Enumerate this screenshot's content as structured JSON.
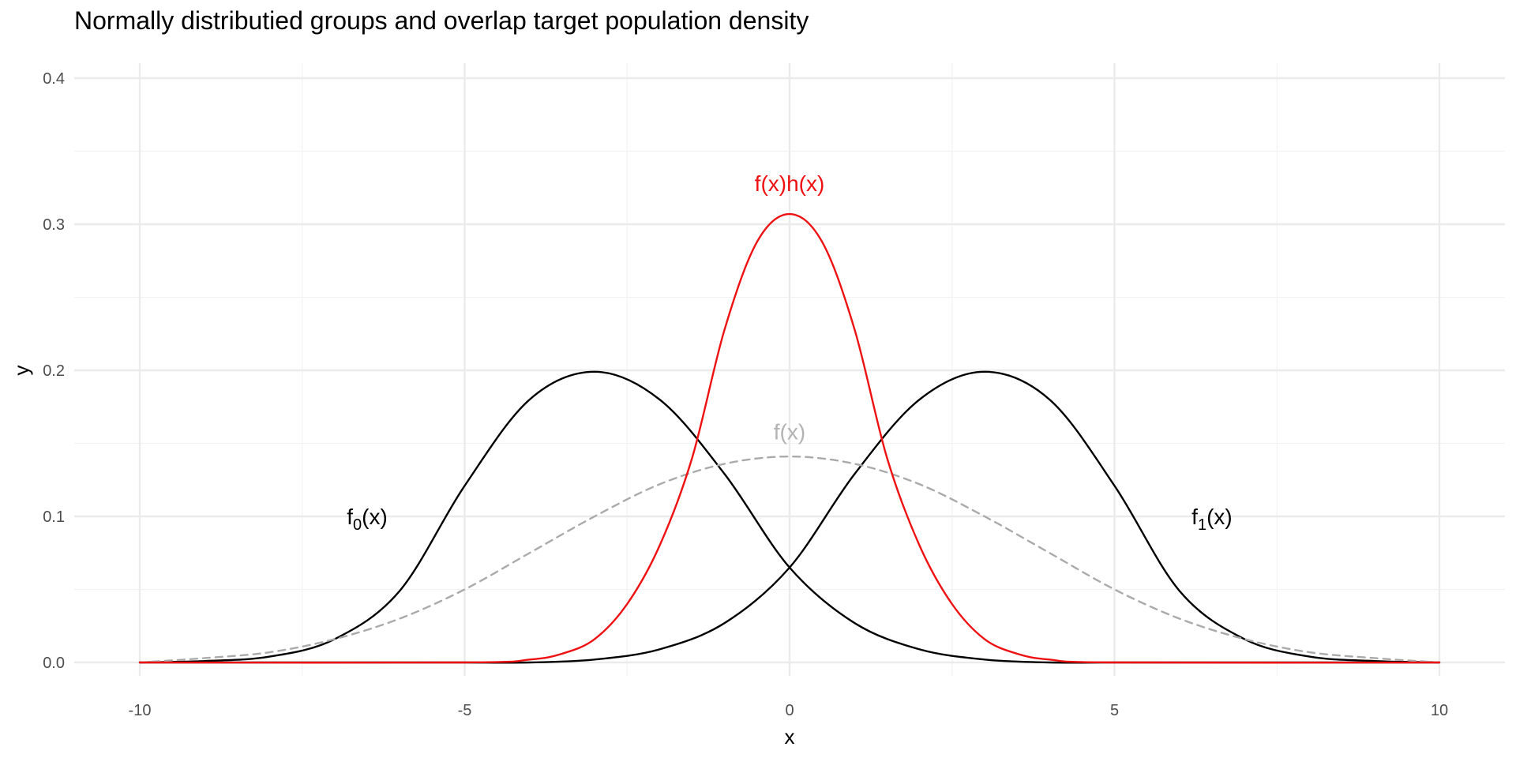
{
  "chart_data": {
    "type": "line",
    "title": "Normally distributied groups and overlap target population density",
    "xlabel": "x",
    "ylabel": "y",
    "xlim": [
      -10,
      10
    ],
    "ylim": [
      0,
      0.4
    ],
    "x_ticks": [
      -10,
      -5,
      0,
      5,
      10
    ],
    "x_tick_labels": [
      "-10",
      "-5",
      "0",
      "5",
      "10"
    ],
    "y_ticks": [
      0,
      0.1,
      0.2,
      0.3,
      0.4
    ],
    "y_tick_labels": [
      "0.0",
      "0.1",
      "0.2",
      "0.3",
      "0.4"
    ],
    "grid": true,
    "legend": "none",
    "series": [
      {
        "key": "f0",
        "style": "solid",
        "color": "#000000",
        "x": [
          -10,
          -9,
          -8,
          -7,
          -6,
          -5,
          -4,
          -3,
          -2,
          -1,
          0,
          1,
          2,
          3,
          4,
          5,
          6,
          7,
          8,
          9,
          10
        ],
        "values": [
          0.0,
          0.001,
          0.004,
          0.016,
          0.049,
          0.121,
          0.18,
          0.199,
          0.18,
          0.129,
          0.065,
          0.027,
          0.009,
          0.002,
          0.0,
          0.0,
          0.0,
          0.0,
          0.0,
          0.0,
          0.0
        ]
      },
      {
        "key": "f1",
        "style": "solid",
        "color": "#000000",
        "x": [
          -10,
          -9,
          -8,
          -7,
          -6,
          -5,
          -4,
          -3,
          -2,
          -1,
          0,
          1,
          2,
          3,
          4,
          5,
          6,
          7,
          8,
          9,
          10
        ],
        "values": [
          0.0,
          0.0,
          0.0,
          0.0,
          0.0,
          0.0,
          0.0,
          0.002,
          0.009,
          0.027,
          0.065,
          0.129,
          0.18,
          0.199,
          0.18,
          0.121,
          0.049,
          0.016,
          0.004,
          0.001,
          0.0
        ]
      },
      {
        "key": "f",
        "style": "dashed",
        "color": "#aaaaaa",
        "x": [
          -10,
          -9,
          -8,
          -7,
          -6,
          -5,
          -4,
          -3,
          -2,
          -1,
          0,
          1,
          2,
          3,
          4,
          5,
          6,
          7,
          8,
          9,
          10
        ],
        "values": [
          0.0,
          0.003,
          0.007,
          0.016,
          0.03,
          0.05,
          0.075,
          0.1,
          0.122,
          0.136,
          0.141,
          0.136,
          0.122,
          0.1,
          0.075,
          0.05,
          0.03,
          0.016,
          0.007,
          0.003,
          0.0
        ]
      },
      {
        "key": "fh",
        "style": "solid",
        "color": "#ee1111",
        "x": [
          -10,
          -5,
          -4,
          -3.5,
          -3,
          -2.5,
          -2,
          -1.5,
          -1,
          -0.5,
          0,
          0.5,
          1,
          1.5,
          2,
          2.5,
          3,
          3.5,
          4,
          5,
          10
        ],
        "values": [
          0.0,
          0.0,
          0.002,
          0.006,
          0.016,
          0.04,
          0.08,
          0.14,
          0.228,
          0.288,
          0.307,
          0.288,
          0.228,
          0.14,
          0.08,
          0.04,
          0.016,
          0.006,
          0.002,
          0.0,
          0.0
        ]
      }
    ],
    "annotations": [
      {
        "key": "f0",
        "base": "f",
        "sub": "0",
        "tail": "(x)",
        "x": -6.5,
        "y": 0.1,
        "color": "#000000"
      },
      {
        "key": "f1",
        "base": "f",
        "sub": "1",
        "tail": "(x)",
        "x": 6.5,
        "y": 0.1,
        "color": "#000000"
      },
      {
        "key": "f",
        "base": "f(x)",
        "sub": "",
        "tail": "",
        "x": 0,
        "y": 0.158,
        "color": "#b3b3b3"
      },
      {
        "key": "fh",
        "base": "f(x)h(x)",
        "sub": "",
        "tail": "",
        "x": 0,
        "y": 0.328,
        "color": "#ee1111"
      }
    ]
  }
}
